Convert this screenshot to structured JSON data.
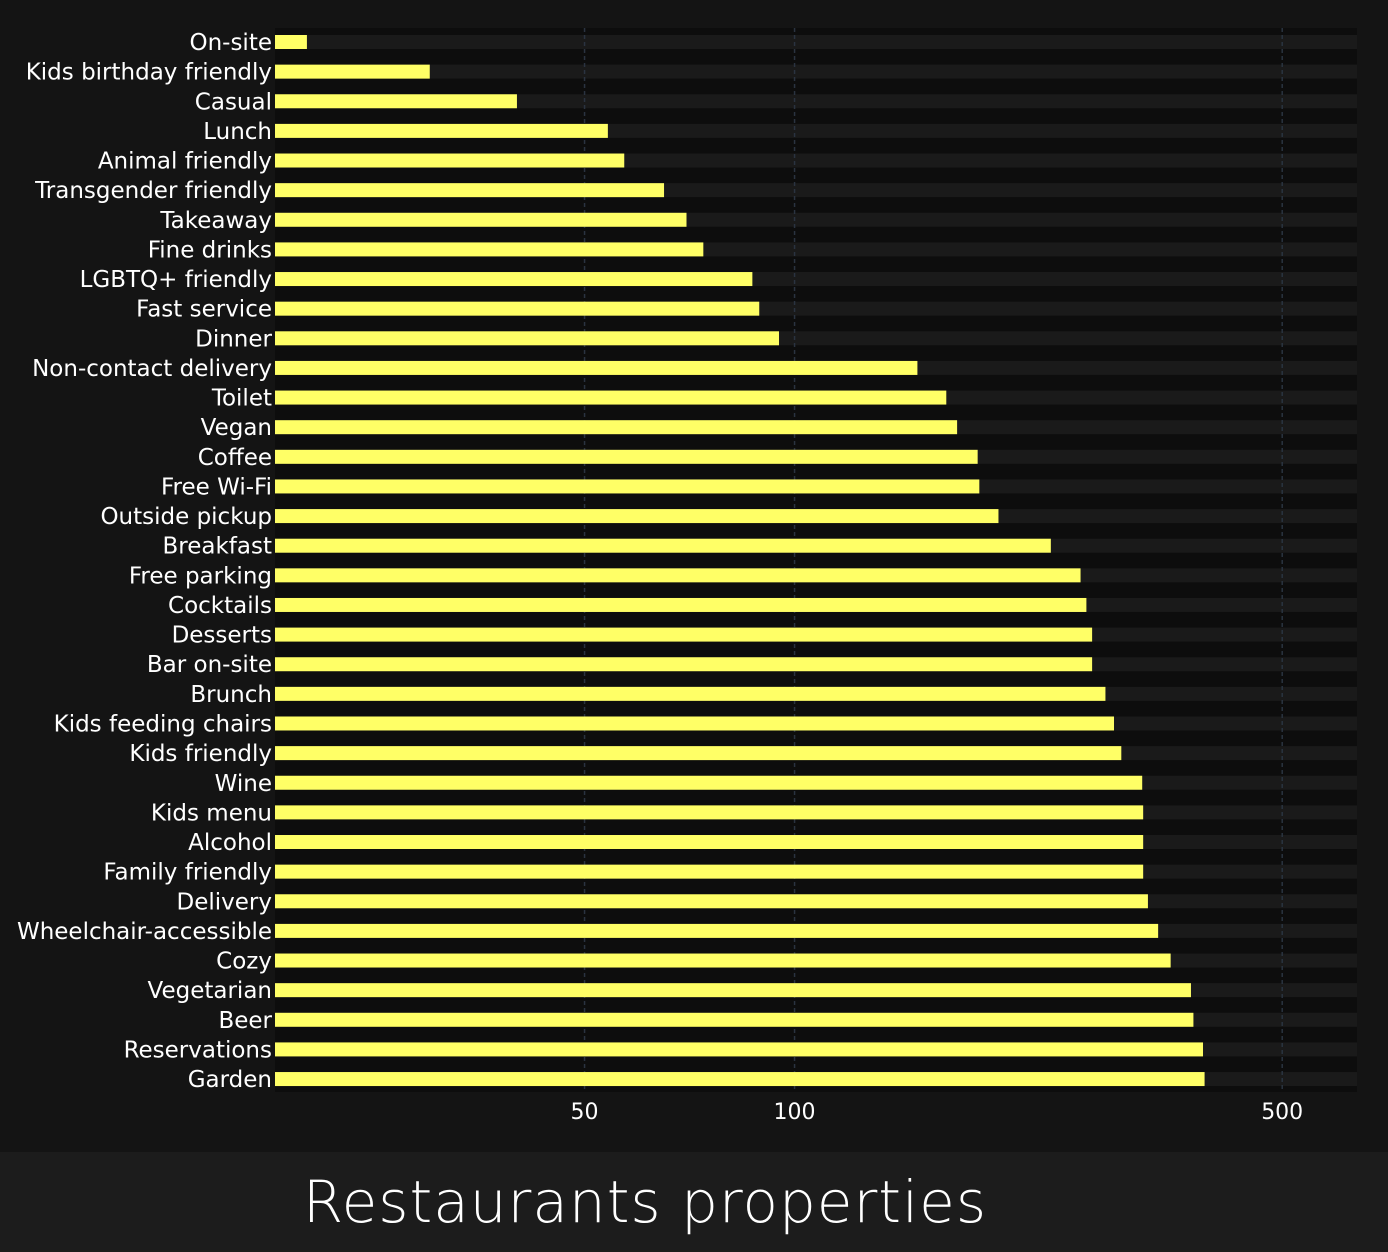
{
  "caption": "Restaurants properties",
  "chart_data": {
    "type": "bar",
    "orientation": "horizontal",
    "xscale": "log",
    "xlim": [
      18,
      640
    ],
    "xticks": [
      50,
      100,
      500
    ],
    "xtick_labels": [
      "50",
      "100",
      "500"
    ],
    "grid": true,
    "legend": "none",
    "title": "",
    "xlabel": "",
    "ylabel": "",
    "colors": {
      "bar": "#ffff66",
      "plot_background": "#0d0d0d",
      "row_band": "#1a1a1a",
      "paper": "#141414",
      "grid": "#2a3340",
      "text": "#ffffff"
    },
    "categories": [
      "On-site",
      "Kids birthday friendly",
      "Casual",
      "Lunch",
      "Animal friendly",
      "Transgender friendly",
      "Takeaway",
      "Fine drinks",
      "LGBTQ+ friendly",
      "Fast service",
      "Dinner",
      "Non-contact delivery",
      "Toilet",
      "Vegan",
      "Coffee",
      "Free Wi-Fi",
      "Outside pickup",
      "Breakfast",
      "Free parking",
      "Cocktails",
      "Desserts",
      "Bar on-site",
      "Brunch",
      "Kids feeding chairs",
      "Kids friendly",
      "Wine",
      "Kids menu",
      "Alcohol",
      "Family friendly",
      "Delivery",
      "Wheelchair-accessible",
      "Cozy",
      "Vegetarian",
      "Beer",
      "Reservations",
      "Garden"
    ],
    "values": [
      20,
      30,
      40,
      54,
      57,
      65,
      70,
      74,
      87,
      89,
      95,
      150,
      165,
      171,
      183,
      184,
      196,
      233,
      257,
      262,
      267,
      267,
      279,
      287,
      294,
      315,
      316,
      316,
      316,
      321,
      332,
      346,
      370,
      373,
      385,
      387
    ]
  }
}
